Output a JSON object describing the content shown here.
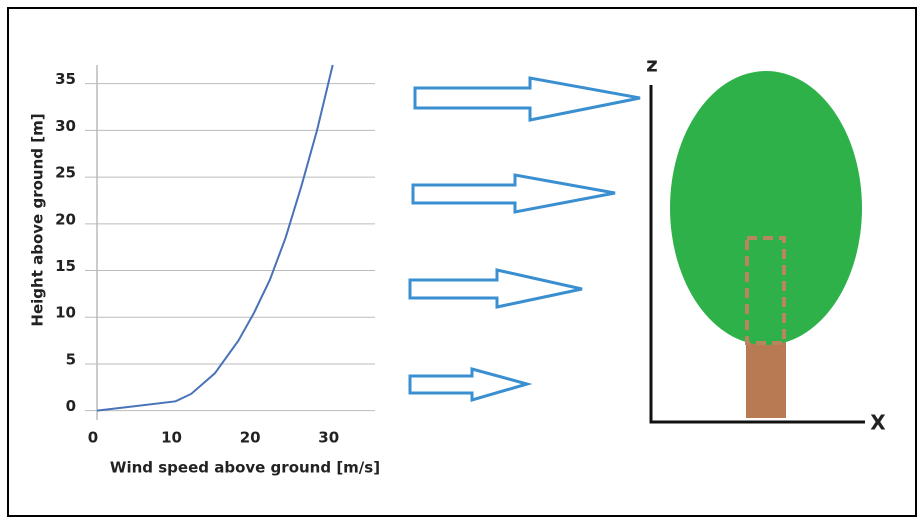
{
  "chart_data": {
    "type": "line",
    "xlabel": "Wind speed above ground [m/s]",
    "ylabel": "Height above ground [m]",
    "x": [
      0,
      10,
      12,
      15,
      18,
      20,
      22,
      24,
      26,
      28,
      30
    ],
    "series": [
      {
        "color": "#4a72b8",
        "values": [
          0,
          1,
          1.8,
          4,
          7.5,
          10.5,
          14,
          18.5,
          24,
          30,
          37
        ]
      }
    ],
    "xlim": [
      0,
      35
    ],
    "xticks": [
      0,
      10,
      20,
      30
    ],
    "ylim": [
      -1,
      37
    ],
    "yticks": [
      0,
      5,
      10,
      15,
      20,
      25,
      30,
      35
    ],
    "grid": true
  },
  "diagram": {
    "z_axis": "z",
    "x_axis": "X"
  }
}
